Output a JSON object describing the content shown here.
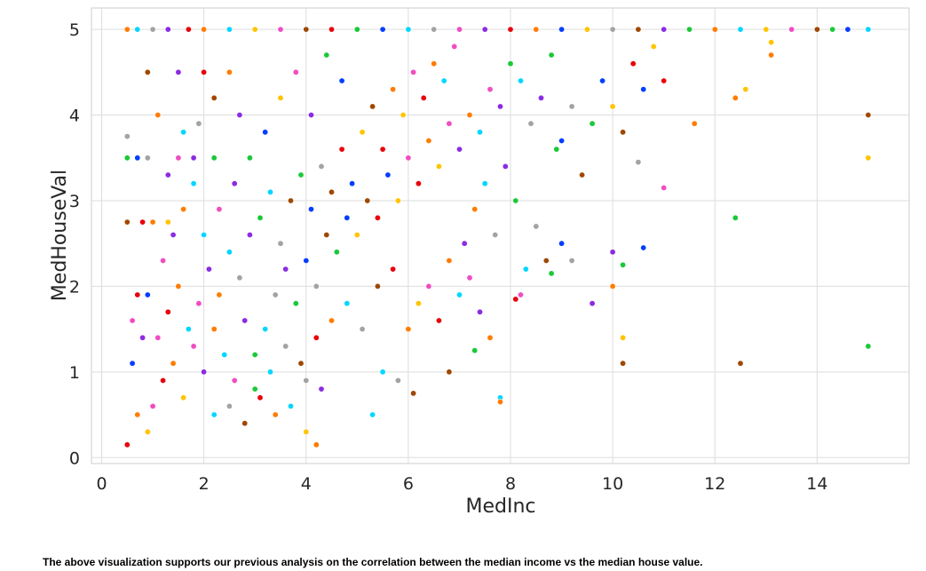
{
  "caption": "The above visualization supports our previous analysis on the correlation between the median income vs the median house value.",
  "chart_data": {
    "type": "scatter",
    "title": "",
    "xlabel": "MedInc",
    "ylabel": "MedHouseVal",
    "xlim": [
      -0.2,
      15.8
    ],
    "ylim": [
      -0.07,
      5.25
    ],
    "xticks": [
      0,
      2,
      4,
      6,
      8,
      10,
      12,
      14
    ],
    "yticks": [
      0,
      1,
      2,
      3,
      4,
      5
    ],
    "xtick_labels": [
      "0",
      "2",
      "4",
      "6",
      "8",
      "10",
      "12",
      "14"
    ],
    "ytick_labels": [
      "0",
      "1",
      "2",
      "3",
      "4",
      "5"
    ],
    "grid": true,
    "legend": "none",
    "background": "#ffffff",
    "grid_color": "#dddddd",
    "palette": [
      "#023eff",
      "#ff7c00",
      "#1ac938",
      "#e8000b",
      "#8b2be2",
      "#9f4800",
      "#f14cc1",
      "#a3a3a3",
      "#ffc400",
      "#00d7ff"
    ],
    "correlation_description": "positive correlation between median income and median house value, values capped at 5.0",
    "points": [
      [
        0.5,
        5.0
      ],
      [
        0.7,
        5.0
      ],
      [
        1.0,
        5.0
      ],
      [
        1.3,
        5.0
      ],
      [
        1.7,
        5.0
      ],
      [
        2.0,
        5.0
      ],
      [
        2.5,
        5.0
      ],
      [
        3.0,
        5.0
      ],
      [
        3.5,
        5.0
      ],
      [
        4.0,
        5.0
      ],
      [
        4.5,
        5.0
      ],
      [
        5.0,
        5.0
      ],
      [
        5.5,
        5.0
      ],
      [
        6.0,
        5.0
      ],
      [
        6.5,
        5.0
      ],
      [
        7.0,
        5.0
      ],
      [
        7.5,
        5.0
      ],
      [
        8.0,
        5.0
      ],
      [
        8.5,
        5.0
      ],
      [
        9.0,
        5.0
      ],
      [
        9.5,
        5.0
      ],
      [
        10.0,
        5.0
      ],
      [
        10.5,
        5.0
      ],
      [
        11.0,
        5.0
      ],
      [
        11.5,
        5.0
      ],
      [
        12.0,
        5.0
      ],
      [
        12.5,
        5.0
      ],
      [
        13.0,
        5.0
      ],
      [
        13.5,
        5.0
      ],
      [
        14.0,
        5.0
      ],
      [
        14.3,
        5.0
      ],
      [
        14.6,
        5.0
      ],
      [
        15.0,
        5.0
      ],
      [
        0.5,
        3.5
      ],
      [
        0.7,
        3.5
      ],
      [
        0.9,
        3.5
      ],
      [
        1.5,
        3.5
      ],
      [
        1.8,
        3.5
      ],
      [
        2.2,
        3.5
      ],
      [
        15.0,
        3.5
      ],
      [
        15.0,
        4.0
      ],
      [
        15.0,
        1.3
      ],
      [
        0.5,
        2.75
      ],
      [
        0.8,
        2.75
      ],
      [
        1.0,
        2.75
      ],
      [
        1.3,
        2.75
      ],
      [
        0.5,
        0.15
      ],
      [
        0.6,
        1.1
      ],
      [
        0.5,
        3.75
      ],
      [
        0.9,
        4.5
      ],
      [
        1.5,
        4.5
      ],
      [
        2.0,
        4.5
      ],
      [
        2.5,
        4.5
      ],
      [
        0.7,
        1.9
      ],
      [
        0.9,
        1.9
      ],
      [
        0.6,
        1.6
      ],
      [
        0.8,
        1.4
      ],
      [
        0.7,
        0.5
      ],
      [
        0.9,
        0.3
      ],
      [
        1.0,
        0.6
      ],
      [
        1.2,
        0.9
      ],
      [
        1.4,
        1.1
      ],
      [
        1.6,
        0.7
      ],
      [
        1.8,
        1.3
      ],
      [
        2.0,
        1.0
      ],
      [
        2.2,
        1.5
      ],
      [
        2.4,
        1.2
      ],
      [
        2.6,
        0.9
      ],
      [
        2.8,
        1.6
      ],
      [
        1.1,
        1.4
      ],
      [
        1.3,
        1.7
      ],
      [
        1.5,
        2.0
      ],
      [
        1.7,
        1.5
      ],
      [
        1.9,
        1.8
      ],
      [
        2.1,
        2.2
      ],
      [
        2.3,
        1.9
      ],
      [
        2.5,
        2.4
      ],
      [
        2.7,
        2.1
      ],
      [
        2.9,
        2.6
      ],
      [
        3.0,
        1.2
      ],
      [
        3.2,
        1.5
      ],
      [
        3.4,
        1.9
      ],
      [
        3.6,
        2.2
      ],
      [
        3.8,
        1.8
      ],
      [
        4.0,
        2.3
      ],
      [
        4.2,
        2.0
      ],
      [
        4.4,
        2.6
      ],
      [
        4.6,
        2.4
      ],
      [
        4.8,
        2.8
      ],
      [
        3.1,
        2.8
      ],
      [
        3.3,
        3.1
      ],
      [
        3.5,
        2.5
      ],
      [
        3.7,
        3.0
      ],
      [
        3.9,
        3.3
      ],
      [
        4.1,
        2.9
      ],
      [
        4.3,
        3.4
      ],
      [
        4.5,
        3.1
      ],
      [
        4.7,
        3.6
      ],
      [
        4.9,
        3.2
      ],
      [
        3.0,
        0.8
      ],
      [
        3.3,
        1.0
      ],
      [
        3.6,
        1.3
      ],
      [
        3.9,
        1.1
      ],
      [
        4.2,
        1.4
      ],
      [
        4.5,
        1.6
      ],
      [
        4.8,
        1.8
      ],
      [
        5.1,
        1.5
      ],
      [
        5.4,
        2.0
      ],
      [
        5.7,
        2.2
      ],
      [
        5.0,
        2.6
      ],
      [
        5.2,
        3.0
      ],
      [
        5.4,
        2.8
      ],
      [
        5.6,
        3.3
      ],
      [
        5.8,
        3.0
      ],
      [
        6.0,
        3.5
      ],
      [
        6.2,
        3.2
      ],
      [
        6.4,
        3.7
      ],
      [
        6.6,
        3.4
      ],
      [
        6.8,
        3.9
      ],
      [
        5.1,
        3.8
      ],
      [
        5.3,
        4.1
      ],
      [
        5.5,
        3.6
      ],
      [
        5.7,
        4.3
      ],
      [
        5.9,
        4.0
      ],
      [
        6.1,
        4.5
      ],
      [
        6.3,
        4.2
      ],
      [
        6.5,
        4.6
      ],
      [
        6.7,
        4.4
      ],
      [
        6.9,
        4.8
      ],
      [
        7.0,
        3.6
      ],
      [
        7.2,
        4.0
      ],
      [
        7.4,
        3.8
      ],
      [
        7.6,
        4.3
      ],
      [
        7.8,
        4.1
      ],
      [
        8.0,
        4.6
      ],
      [
        8.2,
        4.4
      ],
      [
        8.4,
        3.9
      ],
      [
        8.6,
        4.2
      ],
      [
        8.8,
        4.7
      ],
      [
        7.1,
        2.5
      ],
      [
        7.3,
        2.9
      ],
      [
        7.5,
        3.2
      ],
      [
        7.7,
        2.6
      ],
      [
        7.9,
        3.4
      ],
      [
        8.1,
        3.0
      ],
      [
        8.3,
        2.2
      ],
      [
        8.5,
        2.7
      ],
      [
        8.7,
        2.3
      ],
      [
        8.9,
        3.6
      ],
      [
        6.0,
        1.5
      ],
      [
        6.2,
        1.8
      ],
      [
        6.4,
        2.0
      ],
      [
        6.6,
        1.6
      ],
      [
        6.8,
        2.3
      ],
      [
        7.0,
        1.9
      ],
      [
        7.2,
        2.1
      ],
      [
        7.4,
        1.7
      ],
      [
        7.6,
        1.4
      ],
      [
        7.8,
        0.7
      ],
      [
        2.2,
        0.5
      ],
      [
        2.5,
        0.6
      ],
      [
        2.8,
        0.4
      ],
      [
        3.1,
        0.7
      ],
      [
        3.4,
        0.5
      ],
      [
        3.7,
        0.6
      ],
      [
        4.0,
        0.9
      ],
      [
        4.3,
        0.8
      ],
      [
        4.2,
        0.15
      ],
      [
        4.0,
        0.3
      ],
      [
        2.0,
        2.6
      ],
      [
        2.3,
        2.9
      ],
      [
        2.6,
        3.2
      ],
      [
        2.9,
        3.5
      ],
      [
        3.2,
        3.8
      ],
      [
        3.5,
        4.2
      ],
      [
        3.8,
        4.5
      ],
      [
        4.1,
        4.0
      ],
      [
        4.4,
        4.7
      ],
      [
        4.7,
        4.4
      ],
      [
        1.2,
        2.3
      ],
      [
        1.4,
        2.6
      ],
      [
        1.6,
        2.9
      ],
      [
        1.8,
        3.2
      ],
      [
        1.3,
        3.3
      ],
      [
        1.1,
        4.0
      ],
      [
        1.6,
        3.8
      ],
      [
        1.9,
        3.9
      ],
      [
        2.2,
        4.2
      ],
      [
        2.7,
        4.0
      ],
      [
        9.0,
        3.7
      ],
      [
        9.2,
        4.1
      ],
      [
        9.4,
        3.3
      ],
      [
        9.6,
        3.9
      ],
      [
        9.8,
        4.4
      ],
      [
        10.0,
        4.1
      ],
      [
        10.2,
        3.8
      ],
      [
        10.4,
        4.6
      ],
      [
        10.6,
        4.3
      ],
      [
        10.8,
        4.8
      ],
      [
        9.0,
        2.5
      ],
      [
        9.2,
        2.3
      ],
      [
        9.6,
        1.8
      ],
      [
        10.0,
        2.4
      ],
      [
        10.0,
        2.0
      ],
      [
        10.2,
        1.4
      ],
      [
        10.2,
        1.1
      ],
      [
        10.2,
        2.25
      ],
      [
        10.6,
        2.45
      ],
      [
        8.8,
        2.15
      ],
      [
        11.0,
        3.15
      ],
      [
        11.0,
        4.4
      ],
      [
        11.6,
        3.9
      ],
      [
        12.4,
        4.2
      ],
      [
        12.6,
        4.3
      ],
      [
        12.5,
        1.1
      ],
      [
        12.4,
        2.8
      ],
      [
        13.1,
        4.7
      ],
      [
        13.1,
        4.85
      ],
      [
        10.5,
        3.45
      ],
      [
        5.5,
        1.0
      ],
      [
        5.8,
        0.9
      ],
      [
        6.1,
        0.75
      ],
      [
        5.3,
        0.5
      ],
      [
        7.3,
        1.25
      ],
      [
        7.8,
        0.65
      ],
      [
        6.8,
        1.0
      ],
      [
        8.2,
        1.9
      ],
      [
        8.1,
        1.85
      ],
      [
        9.6,
        1.8
      ]
    ]
  }
}
